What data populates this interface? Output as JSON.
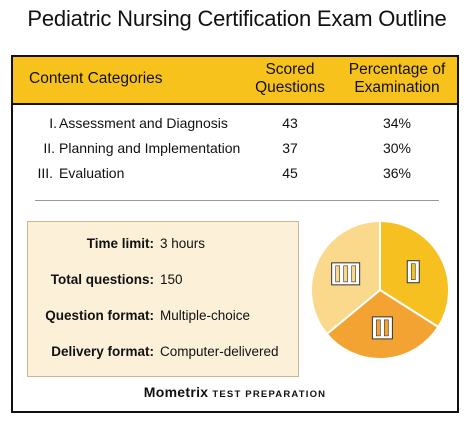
{
  "title": "Pediatric Nursing Certification Exam Outline",
  "table": {
    "headers": {
      "category": "Content Categories",
      "scored": [
        "Scored",
        "Questions"
      ],
      "percentage": [
        "Percentage of",
        "Examination"
      ]
    },
    "rows": [
      {
        "numeral": "I.",
        "category": "Assessment and Diagnosis",
        "scored": "43",
        "percentage": "34%"
      },
      {
        "numeral": "II.",
        "category": "Planning and Implementation",
        "scored": "37",
        "percentage": "30%"
      },
      {
        "numeral": "III.",
        "category": "Evaluation",
        "scored": "45",
        "percentage": "36%"
      }
    ]
  },
  "info": {
    "time_limit": {
      "label": "Time limit:",
      "value": "3 hours"
    },
    "total_questions": {
      "label": "Total questions:",
      "value": "150"
    },
    "question_format": {
      "label": "Question format:",
      "value": "Multiple-choice"
    },
    "delivery_format": {
      "label": "Delivery format:",
      "value": "Computer-delivered"
    }
  },
  "brand": {
    "name": "Mometrix",
    "tagline": "TEST PREPARATION"
  },
  "colors": {
    "header": "#f7c21c",
    "info_bg": "#fdf0d8"
  },
  "chart_data": {
    "type": "pie",
    "categories": [
      "I",
      "II",
      "III"
    ],
    "values": [
      34,
      30,
      36
    ],
    "colors": [
      "#f5c020",
      "#f3a332",
      "#fbd98c"
    ],
    "start_angle_deg": 0,
    "direction": "clockwise",
    "legend": "none"
  }
}
